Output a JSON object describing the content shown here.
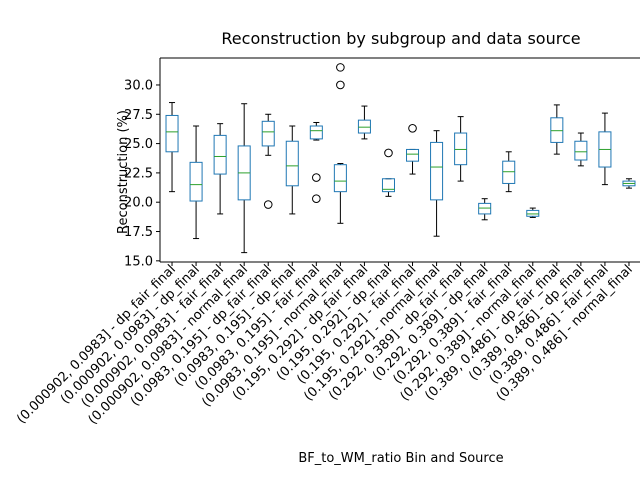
{
  "chart_data": {
    "type": "boxplot",
    "title": "Reconstruction by subgroup and data source",
    "xlabel": "BF_to_WM_ratio Bin and Source",
    "ylabel": "Reconstruction (%)",
    "ylim": [
      14.9,
      32.3
    ],
    "yticks": [
      15.0,
      17.5,
      20.0,
      22.5,
      25.0,
      27.5,
      30.0
    ],
    "ytick_labels": [
      "15.0",
      "17.5",
      "20.0",
      "22.5",
      "25.0",
      "27.5",
      "30.0"
    ],
    "grid": false,
    "colors": {
      "box": "#1f77b4",
      "median": "#2ca02c",
      "whisker": "#000000",
      "flier": "#000000"
    },
    "categories": [
      "(0.000902, 0.0983] - dp_fair_final",
      "(0.000902, 0.0983] - dp_final",
      "(0.000902, 0.0983] - fair_final",
      "(0.000902, 0.0983] - normal_final",
      "(0.0983, 0.195] - dp_fair_final",
      "(0.0983, 0.195] - dp_final",
      "(0.0983, 0.195] - fair_final",
      "(0.0983, 0.195] - normal_final",
      "(0.195, 0.292] - dp_fair_final",
      "(0.195, 0.292] - dp_final",
      "(0.195, 0.292] - fair_final",
      "(0.195, 0.292] - normal_final",
      "(0.292, 0.389] - dp_fair_final",
      "(0.292, 0.389] - dp_final",
      "(0.292, 0.389] - fair_final",
      "(0.292, 0.389] - normal_final",
      "(0.389, 0.486] - dp_fair_final",
      "(0.389, 0.486] - dp_final",
      "(0.389, 0.486] - fair_final",
      "(0.389, 0.486] - normal_final"
    ],
    "boxes": [
      {
        "whislo": 20.9,
        "q1": 24.3,
        "med": 26.0,
        "q3": 27.4,
        "whishi": 28.5,
        "fliers": []
      },
      {
        "whislo": 16.9,
        "q1": 20.1,
        "med": 21.5,
        "q3": 23.4,
        "whishi": 26.5,
        "fliers": []
      },
      {
        "whislo": 19.0,
        "q1": 22.4,
        "med": 23.9,
        "q3": 25.7,
        "whishi": 26.7,
        "fliers": []
      },
      {
        "whislo": 15.7,
        "q1": 20.2,
        "med": 22.5,
        "q3": 24.8,
        "whishi": 28.4,
        "fliers": []
      },
      {
        "whislo": 24.0,
        "q1": 24.8,
        "med": 26.0,
        "q3": 26.9,
        "whishi": 27.5,
        "fliers": [
          19.8
        ]
      },
      {
        "whislo": 19.0,
        "q1": 21.4,
        "med": 23.1,
        "q3": 25.2,
        "whishi": 26.5,
        "fliers": []
      },
      {
        "whislo": 25.3,
        "q1": 25.4,
        "med": 26.1,
        "q3": 26.5,
        "whishi": 26.8,
        "fliers": [
          22.1,
          20.3
        ]
      },
      {
        "whislo": 18.2,
        "q1": 20.9,
        "med": 21.8,
        "q3": 23.2,
        "whishi": 23.3,
        "fliers": [
          31.5,
          30.0
        ]
      },
      {
        "whislo": 25.4,
        "q1": 25.9,
        "med": 26.4,
        "q3": 27.0,
        "whishi": 28.2,
        "fliers": []
      },
      {
        "whislo": 20.5,
        "q1": 20.9,
        "med": 21.1,
        "q3": 22.0,
        "whishi": 22.0,
        "fliers": [
          24.2
        ]
      },
      {
        "whislo": 22.4,
        "q1": 23.5,
        "med": 24.1,
        "q3": 24.5,
        "whishi": 24.5,
        "fliers": [
          26.3
        ]
      },
      {
        "whislo": 17.1,
        "q1": 20.2,
        "med": 23.0,
        "q3": 25.1,
        "whishi": 26.1,
        "fliers": []
      },
      {
        "whislo": 21.8,
        "q1": 23.2,
        "med": 24.5,
        "q3": 25.9,
        "whishi": 27.3,
        "fliers": []
      },
      {
        "whislo": 18.5,
        "q1": 19.0,
        "med": 19.5,
        "q3": 19.9,
        "whishi": 20.3,
        "fliers": []
      },
      {
        "whislo": 20.9,
        "q1": 21.6,
        "med": 22.6,
        "q3": 23.5,
        "whishi": 24.3,
        "fliers": []
      },
      {
        "whislo": 18.7,
        "q1": 18.8,
        "med": 19.0,
        "q3": 19.3,
        "whishi": 19.5,
        "fliers": []
      },
      {
        "whislo": 24.1,
        "q1": 25.1,
        "med": 26.1,
        "q3": 27.2,
        "whishi": 28.3,
        "fliers": []
      },
      {
        "whislo": 23.1,
        "q1": 23.6,
        "med": 24.3,
        "q3": 25.2,
        "whishi": 25.9,
        "fliers": []
      },
      {
        "whislo": 21.5,
        "q1": 23.0,
        "med": 24.5,
        "q3": 26.0,
        "whishi": 27.6,
        "fliers": []
      },
      {
        "whislo": 21.2,
        "q1": 21.4,
        "med": 21.6,
        "q3": 21.8,
        "whishi": 22.0,
        "fliers": []
      }
    ]
  }
}
